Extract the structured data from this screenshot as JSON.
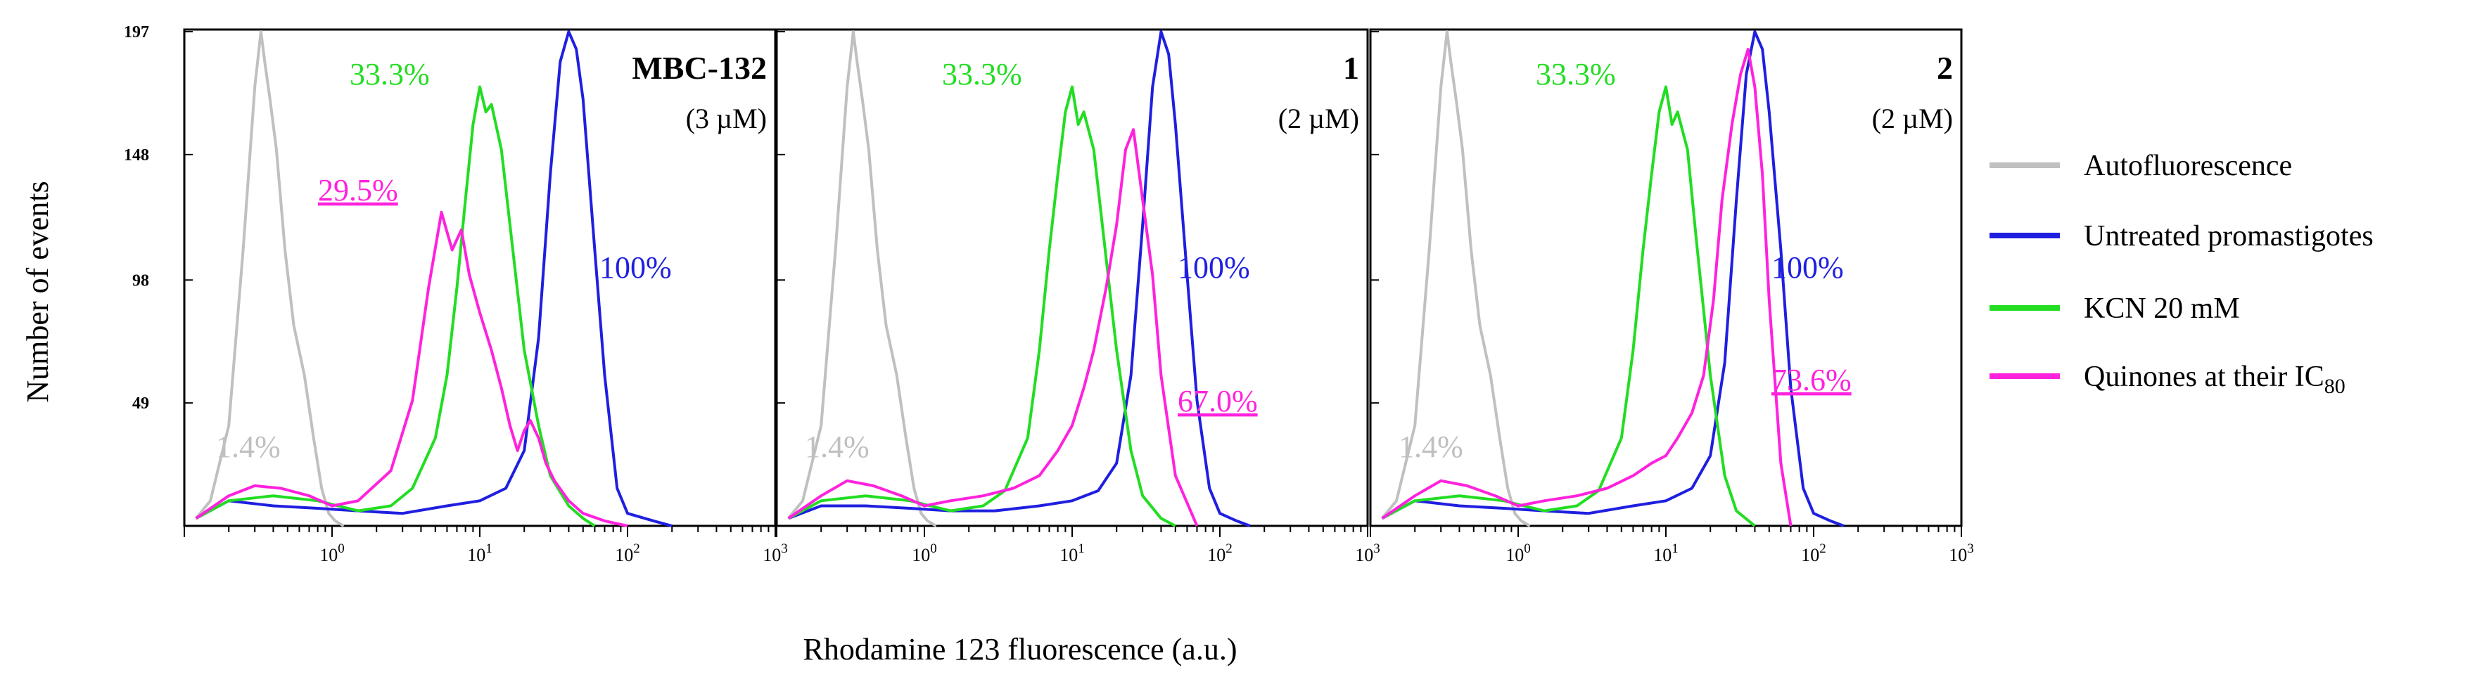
{
  "figure": {
    "ylabel": "Number of events",
    "xlabel": "Rhodamine 123 fluorescence (a.u.)"
  },
  "colors": {
    "autofluorescence": "#c0c0c0",
    "untreated": "#1f1fe0",
    "kcn": "#22dd22",
    "quinones": "#ff22dd",
    "axis": "#000000"
  },
  "legend": [
    {
      "label": "Autofluorescence",
      "color": "#c0c0c0"
    },
    {
      "label": "Untreated promastigotes",
      "color": "#1f1fe0"
    },
    {
      "label": "KCN 20 mM",
      "color": "#22dd22"
    },
    {
      "label": "Quinones at their IC",
      "sub": "80",
      "color": "#ff22dd"
    }
  ],
  "chart_data": [
    {
      "type": "line",
      "panel": "MBC-132",
      "title": "MBC-132",
      "subtitle": "(3 µM)",
      "xscale": "log",
      "xlim": [
        0.1,
        1000
      ],
      "ylim": [
        0,
        197
      ],
      "yticks": [
        49,
        98,
        148,
        197
      ],
      "xticks": [
        "10^0",
        "10^1",
        "10^2",
        "10^3"
      ],
      "xlabel": "Rhodamine 123 fluorescence (a.u.)",
      "ylabel": "Number of events",
      "annotations": [
        {
          "text": "1.4%",
          "series": "Autofluorescence"
        },
        {
          "text": "33.3%",
          "series": "KCN 20 mM"
        },
        {
          "text": "29.5%",
          "series": "Quinones at their IC80",
          "underline": true
        },
        {
          "text": "100%",
          "series": "Untreated promastigotes"
        }
      ],
      "series": [
        {
          "name": "Autofluorescence",
          "x": [
            0.12,
            0.15,
            0.2,
            0.25,
            0.3,
            0.33,
            0.35,
            0.38,
            0.42,
            0.48,
            0.55,
            0.65,
            0.75,
            0.85,
            0.95,
            1.05,
            1.2
          ],
          "y": [
            3,
            10,
            40,
            110,
            175,
            197,
            185,
            170,
            150,
            110,
            80,
            60,
            35,
            15,
            5,
            2,
            0
          ]
        },
        {
          "name": "Untreated promastigotes",
          "x": [
            0.12,
            0.2,
            0.4,
            0.8,
            1.5,
            3,
            6,
            10,
            15,
            20,
            25,
            30,
            35,
            40,
            45,
            50,
            60,
            70,
            85,
            100,
            150,
            200
          ],
          "y": [
            3,
            10,
            8,
            7,
            6,
            5,
            8,
            10,
            15,
            30,
            75,
            140,
            185,
            197,
            190,
            170,
            110,
            60,
            15,
            5,
            2,
            0
          ]
        },
        {
          "name": "KCN 20 mM",
          "x": [
            0.12,
            0.2,
            0.4,
            0.8,
            1.5,
            2.5,
            3.5,
            5,
            6,
            7,
            8,
            9,
            10,
            11,
            12,
            14,
            16,
            20,
            25,
            30,
            40,
            50,
            60
          ],
          "y": [
            3,
            10,
            12,
            10,
            6,
            8,
            15,
            35,
            60,
            95,
            130,
            160,
            175,
            165,
            168,
            150,
            120,
            70,
            40,
            20,
            8,
            3,
            0
          ]
        },
        {
          "name": "Quinones at their IC80",
          "x": [
            0.12,
            0.2,
            0.3,
            0.45,
            0.7,
            1.0,
            1.5,
            2.5,
            3.5,
            4.5,
            5.5,
            6.5,
            7.5,
            8.5,
            10,
            12,
            14,
            16,
            18,
            20,
            22,
            25,
            28,
            32,
            40,
            50,
            70,
            100
          ],
          "y": [
            3,
            12,
            16,
            15,
            12,
            8,
            10,
            22,
            50,
            95,
            125,
            110,
            118,
            100,
            85,
            70,
            55,
            40,
            30,
            38,
            42,
            35,
            25,
            18,
            10,
            5,
            2,
            0
          ]
        }
      ]
    },
    {
      "type": "line",
      "panel": "1",
      "title": "1",
      "subtitle": "(2 µM)",
      "xscale": "log",
      "xlim": [
        0.1,
        1000
      ],
      "ylim": [
        0,
        197
      ],
      "xticks": [
        "10^0",
        "10^1",
        "10^2",
        "10^3"
      ],
      "annotations": [
        {
          "text": "1.4%",
          "series": "Autofluorescence"
        },
        {
          "text": "33.3%",
          "series": "KCN 20 mM"
        },
        {
          "text": "100%",
          "series": "Untreated promastigotes"
        },
        {
          "text": "67.0%",
          "series": "Quinones at their IC80",
          "underline": true
        }
      ],
      "series": [
        {
          "name": "Autofluorescence",
          "x": [
            0.12,
            0.15,
            0.2,
            0.25,
            0.3,
            0.33,
            0.35,
            0.38,
            0.42,
            0.48,
            0.55,
            0.65,
            0.75,
            0.85,
            0.95,
            1.05,
            1.2
          ],
          "y": [
            3,
            10,
            40,
            110,
            175,
            197,
            185,
            170,
            150,
            110,
            80,
            60,
            35,
            15,
            5,
            2,
            0
          ]
        },
        {
          "name": "Untreated promastigotes",
          "x": [
            0.12,
            0.2,
            0.4,
            0.8,
            1.5,
            3,
            6,
            10,
            15,
            20,
            25,
            30,
            35,
            40,
            45,
            50,
            60,
            70,
            85,
            100,
            130,
            160
          ],
          "y": [
            3,
            8,
            8,
            7,
            6,
            6,
            8,
            10,
            14,
            25,
            60,
            120,
            175,
            197,
            188,
            160,
            100,
            50,
            15,
            5,
            2,
            0
          ]
        },
        {
          "name": "KCN 20 mM",
          "x": [
            0.12,
            0.2,
            0.4,
            0.8,
            1.5,
            2.5,
            3.5,
            5,
            6,
            7,
            8,
            9,
            10,
            11,
            12,
            14,
            16,
            20,
            25,
            30,
            40,
            50
          ],
          "y": [
            3,
            10,
            12,
            10,
            6,
            8,
            14,
            35,
            70,
            110,
            140,
            165,
            175,
            160,
            165,
            150,
            120,
            70,
            30,
            12,
            3,
            0
          ]
        },
        {
          "name": "Quinones at their IC80",
          "x": [
            0.12,
            0.2,
            0.3,
            0.45,
            0.7,
            1.0,
            1.5,
            2.5,
            4,
            6,
            8,
            10,
            12,
            14,
            17,
            20,
            23,
            26,
            30,
            35,
            40,
            50,
            70
          ],
          "y": [
            3,
            12,
            18,
            16,
            12,
            8,
            10,
            12,
            15,
            20,
            30,
            40,
            55,
            70,
            95,
            120,
            150,
            158,
            130,
            100,
            60,
            20,
            0
          ]
        }
      ]
    },
    {
      "type": "line",
      "panel": "2",
      "title": "2",
      "subtitle": "(2 µM)",
      "xscale": "log",
      "xlim": [
        0.1,
        1000
      ],
      "ylim": [
        0,
        197
      ],
      "xticks": [
        "10^0",
        "10^1",
        "10^2",
        "10^3"
      ],
      "annotations": [
        {
          "text": "1.4%",
          "series": "Autofluorescence"
        },
        {
          "text": "33.3%",
          "series": "KCN 20 mM"
        },
        {
          "text": "100%",
          "series": "Untreated promastigotes"
        },
        {
          "text": "73.6%",
          "series": "Quinones at their IC80",
          "underline": true
        }
      ],
      "series": [
        {
          "name": "Autofluorescence",
          "x": [
            0.12,
            0.15,
            0.2,
            0.25,
            0.3,
            0.33,
            0.35,
            0.38,
            0.42,
            0.48,
            0.55,
            0.65,
            0.75,
            0.85,
            0.95,
            1.05,
            1.2
          ],
          "y": [
            3,
            10,
            40,
            110,
            175,
            197,
            185,
            170,
            150,
            110,
            80,
            60,
            35,
            15,
            5,
            2,
            0
          ]
        },
        {
          "name": "Untreated promastigotes",
          "x": [
            0.12,
            0.2,
            0.4,
            0.8,
            1.5,
            3,
            6,
            10,
            15,
            20,
            25,
            30,
            35,
            40,
            45,
            50,
            60,
            70,
            85,
            100,
            130,
            160
          ],
          "y": [
            3,
            10,
            8,
            7,
            6,
            5,
            8,
            10,
            15,
            28,
            65,
            130,
            180,
            197,
            190,
            165,
            110,
            55,
            15,
            5,
            2,
            0
          ]
        },
        {
          "name": "KCN 20 mM",
          "x": [
            0.12,
            0.2,
            0.4,
            0.8,
            1.5,
            2.5,
            3.5,
            5,
            6,
            7,
            8,
            9,
            10,
            11,
            12,
            14,
            16,
            20,
            25,
            30,
            40
          ],
          "y": [
            3,
            10,
            12,
            10,
            6,
            8,
            14,
            35,
            70,
            110,
            140,
            165,
            175,
            160,
            165,
            150,
            115,
            60,
            20,
            6,
            0
          ]
        },
        {
          "name": "Quinones at their IC80",
          "x": [
            0.12,
            0.2,
            0.3,
            0.45,
            0.7,
            1.0,
            1.5,
            2.5,
            4,
            6,
            8,
            10,
            12,
            15,
            18,
            21,
            24,
            28,
            32,
            36,
            40,
            45,
            50,
            60,
            70
          ],
          "y": [
            3,
            12,
            18,
            16,
            12,
            8,
            10,
            12,
            15,
            20,
            25,
            28,
            35,
            45,
            60,
            90,
            130,
            160,
            180,
            190,
            175,
            140,
            90,
            25,
            0
          ]
        }
      ]
    }
  ]
}
